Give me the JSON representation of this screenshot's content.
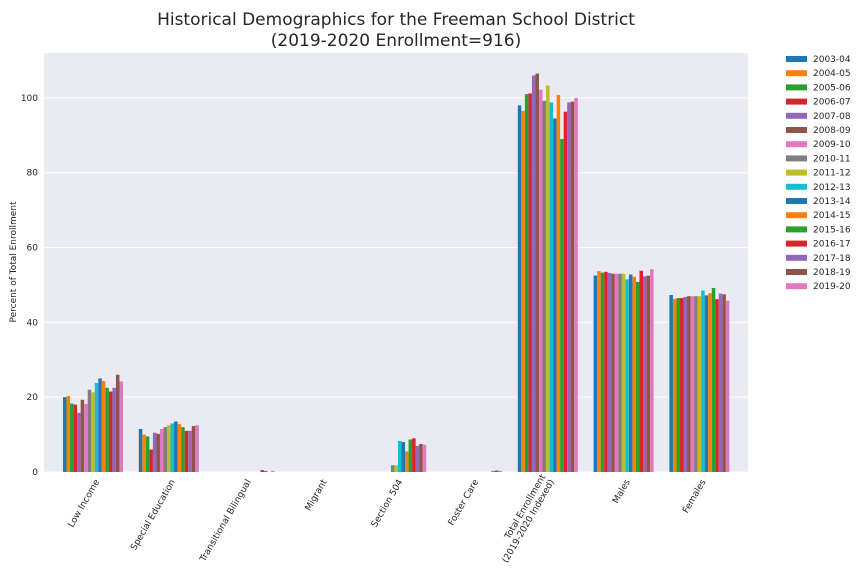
{
  "chart_data": {
    "type": "bar",
    "title": "Historical Demographics for the Freeman School District",
    "subtitle": "(2019-2020 Enrollment=916)",
    "xlabel": "",
    "ylabel": "Percent of Total Enrollment",
    "ylim": [
      0,
      112
    ],
    "yticks": [
      0,
      20,
      40,
      60,
      80,
      100
    ],
    "grid": true,
    "legend": "outside-right",
    "categories": [
      [
        "Low Income"
      ],
      [
        "Special Education"
      ],
      [
        "Transitional Bilingual"
      ],
      [
        "Migrant"
      ],
      [
        "Section 504"
      ],
      [
        "Foster Care"
      ],
      [
        "Total Enrollment",
        "(2019-2020 Indexed)"
      ],
      [
        "Males"
      ],
      [
        "Females"
      ]
    ],
    "series": [
      {
        "name": "2003-04",
        "color": "#1f77b4",
        "values": [
          20.0,
          11.5,
          0,
          0,
          0,
          0,
          98.0,
          52.5,
          47.3
        ]
      },
      {
        "name": "2004-05",
        "color": "#ff7f0e",
        "values": [
          20.3,
          10.0,
          0,
          0,
          0,
          0,
          96.5,
          53.7,
          46.3
        ]
      },
      {
        "name": "2005-06",
        "color": "#2ca02c",
        "values": [
          18.3,
          9.5,
          0,
          0,
          0,
          0,
          101.0,
          53.3,
          46.5
        ]
      },
      {
        "name": "2006-07",
        "color": "#d62728",
        "values": [
          18.0,
          6.0,
          0,
          0,
          0,
          0,
          101.2,
          53.5,
          46.5
        ]
      },
      {
        "name": "2007-08",
        "color": "#9467bd",
        "values": [
          15.8,
          10.5,
          0,
          0,
          0,
          0,
          106.0,
          53.2,
          46.8
        ]
      },
      {
        "name": "2008-09",
        "color": "#8c564b",
        "values": [
          19.3,
          10.2,
          0,
          0,
          0,
          0,
          106.5,
          53.0,
          47.0
        ]
      },
      {
        "name": "2009-10",
        "color": "#e377c2",
        "values": [
          18.2,
          11.5,
          0,
          0,
          0,
          0,
          102.2,
          53.0,
          47.0
        ]
      },
      {
        "name": "2010-11",
        "color": "#7f7f7f",
        "values": [
          22.0,
          12.0,
          0,
          0,
          1.8,
          0,
          99.2,
          53.0,
          47.0
        ]
      },
      {
        "name": "2011-12",
        "color": "#bcbd22",
        "values": [
          21.3,
          12.5,
          0,
          0,
          1.8,
          0,
          103.3,
          53.0,
          47.0
        ]
      },
      {
        "name": "2012-13",
        "color": "#17becf",
        "values": [
          23.8,
          13.0,
          0,
          0,
          8.3,
          0,
          98.8,
          51.5,
          48.5
        ]
      },
      {
        "name": "2013-14",
        "color": "#1f77b4",
        "values": [
          25.0,
          13.5,
          0,
          0,
          8.0,
          0,
          94.5,
          52.8,
          47.2
        ]
      },
      {
        "name": "2014-15",
        "color": "#ff7f0e",
        "values": [
          24.3,
          12.8,
          0,
          0,
          5.5,
          0,
          100.8,
          52.2,
          47.8
        ]
      },
      {
        "name": "2015-16",
        "color": "#2ca02c",
        "values": [
          22.5,
          12.0,
          0,
          0,
          8.7,
          0,
          89.0,
          50.8,
          49.2
        ]
      },
      {
        "name": "2016-17",
        "color": "#d62728",
        "values": [
          21.5,
          11.0,
          0.5,
          0,
          9.0,
          0,
          96.3,
          53.8,
          46.2
        ]
      },
      {
        "name": "2017-18",
        "color": "#9467bd",
        "values": [
          22.5,
          11.0,
          0.3,
          0,
          7.0,
          0.3,
          98.8,
          52.3,
          47.7
        ]
      },
      {
        "name": "2018-19",
        "color": "#8c564b",
        "values": [
          26.0,
          12.3,
          0,
          0,
          7.5,
          0.4,
          99.0,
          52.5,
          47.5
        ]
      },
      {
        "name": "2019-20",
        "color": "#e377c2",
        "values": [
          24.2,
          12.5,
          0.3,
          0,
          7.3,
          0.3,
          100.0,
          54.2,
          45.8
        ]
      }
    ]
  }
}
